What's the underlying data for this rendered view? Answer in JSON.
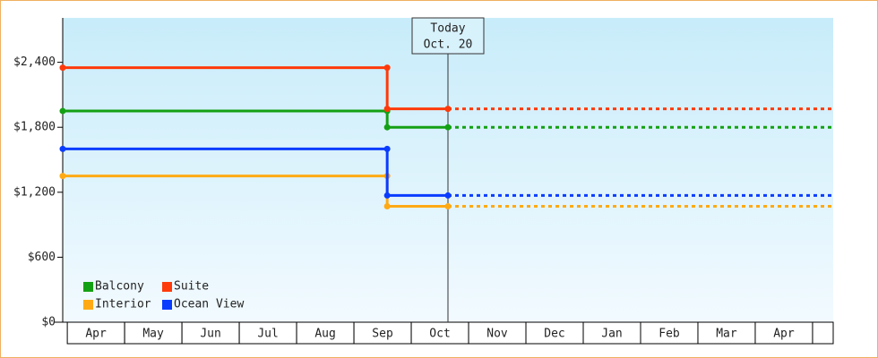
{
  "chart_data": {
    "type": "step-line",
    "categories": [
      "Apr",
      "May",
      "Jun",
      "Jul",
      "Aug",
      "Sep",
      "Oct",
      "Nov",
      "Dec",
      "Jan",
      "Feb",
      "Mar",
      "Apr",
      null
    ],
    "xlim": [
      -0.08,
      13.36
    ],
    "ylim": [
      0,
      2810
    ],
    "yticks": [
      {
        "value": 0,
        "label": "$0"
      },
      {
        "value": 600,
        "label": "$600"
      },
      {
        "value": 1200,
        "label": "$1,200"
      },
      {
        "value": 1800,
        "label": "$1,800"
      },
      {
        "value": 2400,
        "label": "$2,400"
      }
    ],
    "today": {
      "x": 6.64,
      "label": "Today",
      "date": "Oct. 20"
    },
    "projection": "dotted",
    "series": [
      {
        "name": "Balcony",
        "color": "#14a014",
        "x": [
          -0.08,
          5.58,
          5.58,
          6.64
        ],
        "values": [
          1950,
          1950,
          1800,
          1800
        ]
      },
      {
        "name": "Suite",
        "color": "#ff3a0a",
        "x": [
          -0.08,
          5.58,
          5.58,
          6.64
        ],
        "values": [
          2350,
          2350,
          1970,
          1970
        ]
      },
      {
        "name": "Interior",
        "color": "#ffaa14",
        "x": [
          -0.08,
          5.58,
          5.58,
          6.64
        ],
        "values": [
          1350,
          1350,
          1070,
          1070
        ]
      },
      {
        "name": "Ocean View",
        "color": "#0a3cff",
        "x": [
          -0.08,
          5.58,
          5.58,
          6.64
        ],
        "values": [
          1600,
          1600,
          1170,
          1170
        ]
      }
    ],
    "legend": "bottom-left"
  }
}
